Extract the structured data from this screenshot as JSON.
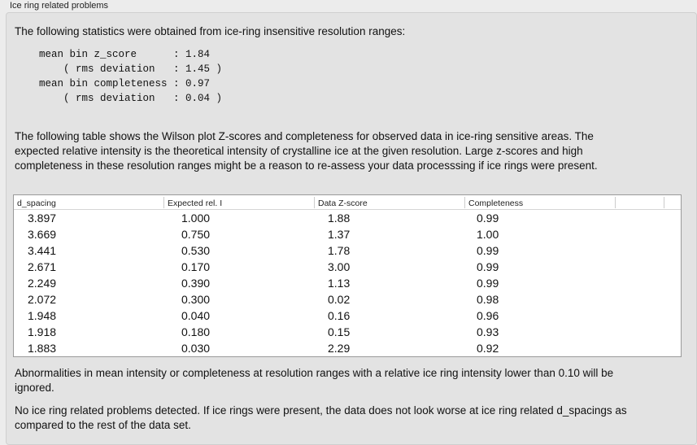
{
  "title": "Ice ring related problems",
  "intro": "The following statistics were obtained from ice-ring insensitive resolution ranges:",
  "stats": "mean bin z_score      : 1.84\n    ( rms deviation   : 1.45 )\nmean bin completeness : 0.97\n    ( rms deviation   : 0.04 )",
  "description": "The following table shows the Wilson plot Z-scores and completeness for observed data in ice-ring sensitive areas. The expected relative intensity is the theoretical intensity of crystalline ice at the given resolution. Large z-scores and high completeness in these resolution ranges might be a reason to re-assess your data processsing if ice rings were present.",
  "table": {
    "columns": [
      "d_spacing",
      "Expected rel. I",
      "Data Z-score",
      "Completeness"
    ],
    "rows": [
      [
        "3.897",
        "1.000",
        "1.88",
        "0.99"
      ],
      [
        "3.669",
        "0.750",
        "1.37",
        "1.00"
      ],
      [
        "3.441",
        "0.530",
        "1.78",
        "0.99"
      ],
      [
        "2.671",
        "0.170",
        "3.00",
        "0.99"
      ],
      [
        "2.249",
        "0.390",
        "1.13",
        "0.99"
      ],
      [
        "2.072",
        "0.300",
        "0.02",
        "0.98"
      ],
      [
        "1.948",
        "0.040",
        "0.16",
        "0.96"
      ],
      [
        "1.918",
        "0.180",
        "0.15",
        "0.93"
      ],
      [
        "1.883",
        "0.030",
        "2.29",
        "0.92"
      ]
    ]
  },
  "note": "Abnormalities in mean intensity or completeness at resolution ranges with a relative ice ring intensity lower than 0.10 will be ignored.",
  "conclusion": "No ice ring related problems detected. If ice rings were present, the data does not look worse at ice ring related d_spacings as compared to the rest of the data set."
}
